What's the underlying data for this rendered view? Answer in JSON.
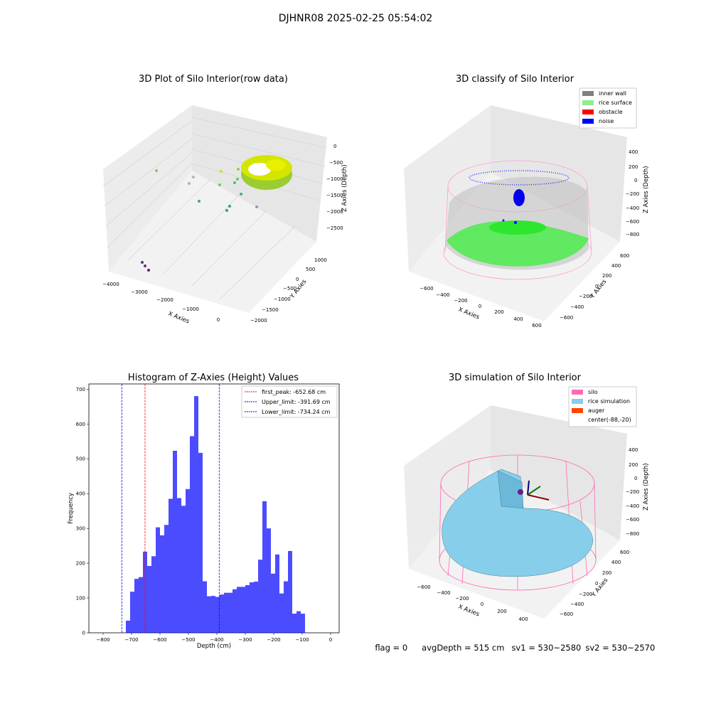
{
  "suptitle": "DJHNR08 2025-02-25 05:54:02",
  "panels": {
    "raw": {
      "title": "3D Plot of Silo Interior(row data)",
      "xlabel": "X Axies",
      "ylabel": "Y Axies",
      "zlabel": "Z Axies (Depth)",
      "xticks": [
        "−4000",
        "−3000",
        "−2000",
        "−1000",
        "0"
      ],
      "yticks": [
        "1000",
        "500",
        "0",
        "−500",
        "−1000",
        "−1500",
        "−2000"
      ],
      "zticks": [
        "0",
        "−500",
        "−1000",
        "−1500",
        "−2000",
        "−2500"
      ]
    },
    "classify": {
      "title": "3D classify of Silo Interior",
      "xlabel": "X Axies",
      "ylabel": "Y Axies",
      "zlabel": "Z Axies (Depth)",
      "xticks": [
        "−600",
        "−400",
        "−200",
        "0",
        "200",
        "400",
        "600"
      ],
      "yticks": [
        "600",
        "400",
        "200",
        "0",
        "−200",
        "−400",
        "−600"
      ],
      "zticks": [
        "400",
        "200",
        "0",
        "−200",
        "−400",
        "−600",
        "−800"
      ],
      "legend": [
        {
          "label": "inner wall",
          "color": "#808080"
        },
        {
          "label": "rice surface",
          "color": "#90ee90"
        },
        {
          "label": "obstacle",
          "color": "#ff0000"
        },
        {
          "label": "noise",
          "color": "#0000ff"
        }
      ]
    },
    "simulation": {
      "title": "3D simulation of Silo Interior",
      "xlabel": "X Axies",
      "ylabel": "Y Axies",
      "zlabel": "Z Axies (Depth)",
      "xticks": [
        "−600",
        "−400",
        "−200",
        "0",
        "200",
        "400"
      ],
      "yticks": [
        "600",
        "400",
        "200",
        "0",
        "−200",
        "−400",
        "−600"
      ],
      "zticks": [
        "400",
        "200",
        "0",
        "−200",
        "−400",
        "−600",
        "−800"
      ],
      "legend": [
        {
          "label": "silo",
          "color": "#ff69b4"
        },
        {
          "label": "rice simulation",
          "color": "#87ceeb"
        },
        {
          "label": "auger",
          "color": "#ff4500"
        },
        {
          "label": "center(-88,-20)",
          "color": "none"
        }
      ]
    }
  },
  "chart_data": {
    "type": "bar",
    "title": "Histogram of Z-Axies (Height) Values",
    "xlabel": "Depth (cm)",
    "ylabel": "Frequency",
    "xlim": [
      -850,
      30
    ],
    "ylim": [
      0,
      715
    ],
    "xticks": [
      -800,
      -700,
      -600,
      -500,
      -400,
      -300,
      -200,
      -100,
      0
    ],
    "yticks": [
      0,
      100,
      200,
      300,
      400,
      500,
      600,
      700
    ],
    "bin_width": 15,
    "bin_start": -720,
    "values": [
      35,
      118,
      155,
      160,
      233,
      192,
      220,
      303,
      280,
      310,
      385,
      523,
      387,
      365,
      413,
      565,
      680,
      517,
      148,
      105,
      106,
      103,
      110,
      115,
      115,
      125,
      132,
      132,
      137,
      145,
      147,
      210,
      378,
      300,
      170,
      225,
      113,
      148,
      235,
      55,
      62,
      55
    ],
    "bar_color": "#0000ff",
    "lines": [
      {
        "label": "first_peak: -652.68 cm",
        "value": -652.68,
        "color": "#ff0000"
      },
      {
        "label": "Upper_limit: -391.69 cm",
        "value": -391.69,
        "color": "#0000ff"
      },
      {
        "label": "Lower_limit: -734.24 cm",
        "value": -734.24,
        "color": "#0000ff"
      }
    ]
  },
  "status": {
    "flag": "flag = 0",
    "avg": "avgDepth = 515 cm",
    "sv1": "sv1 = 530~2580",
    "sv2": "sv2 = 530~2570"
  }
}
